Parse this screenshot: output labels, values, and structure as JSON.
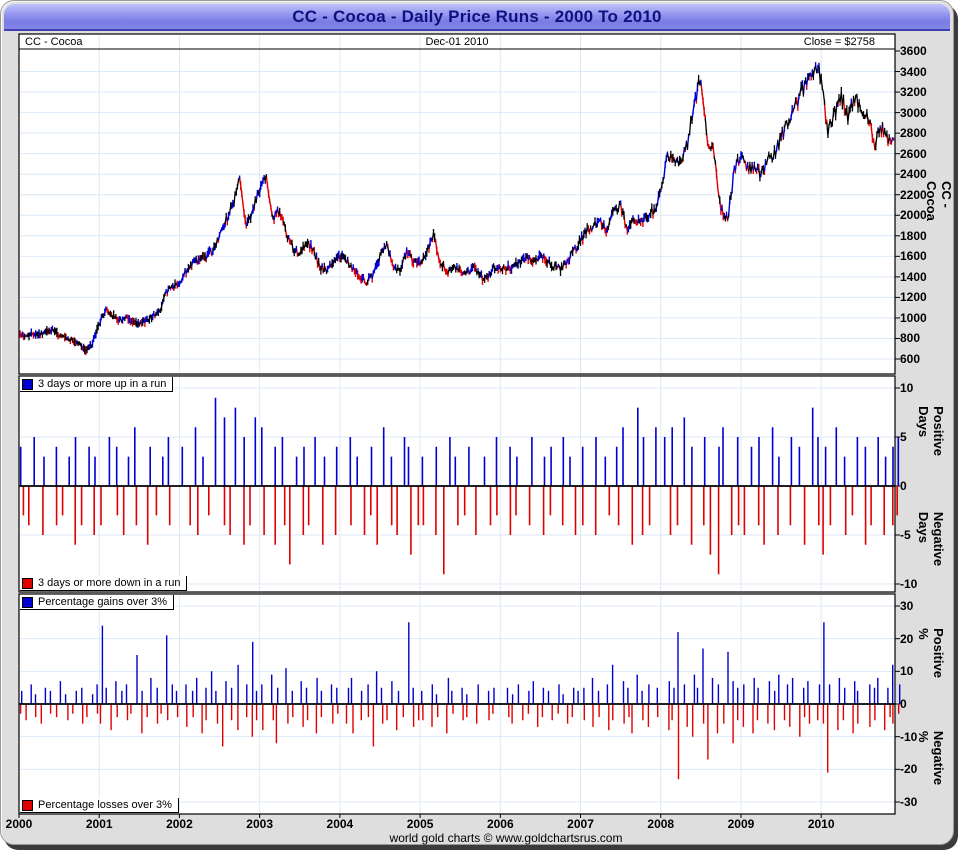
{
  "window_title": "CC - Cocoa - Daily Price Runs - 2000 To 2010",
  "header": {
    "left": "CC - Cocoa",
    "center": "Dec-01 2010",
    "right": "Close = $2758"
  },
  "legends": {
    "days_up": "3 days or more up in a run",
    "days_down": "3 days or more down in a run",
    "pct_up": "Percentage gains over 3%",
    "pct_down": "Percentage losses over 3%"
  },
  "footer_text": "world gold charts © www.goldchartsrus.com",
  "colors": {
    "up_blue": "#0000d2",
    "down_red": "#e00000",
    "line_black": "#000000",
    "grid_blue": "#dce9f6",
    "title_text": "#10107e",
    "titlebar_top": "#c0c2fa",
    "titlebar_bottom": "#8385e8",
    "frame_dark": "#3b3b3b",
    "body_gray": "#dedede"
  },
  "axes": {
    "x_years": [
      "2000",
      "2001",
      "2002",
      "2003",
      "2004",
      "2005",
      "2006",
      "2007",
      "2008",
      "2009",
      "2010"
    ],
    "price_axis": {
      "label": "CC - Cocoa",
      "min": 600,
      "max": 3600,
      "ticks": [
        3600,
        3400,
        3200,
        3000,
        2800,
        2600,
        2400,
        2200,
        2000,
        1800,
        1600,
        1400,
        1200,
        1000,
        800,
        600
      ]
    },
    "days_axis": {
      "pos_label": "Positive Days",
      "neg_label": "Negative Days",
      "min": -10,
      "max": 10,
      "ticks": [
        10,
        5,
        0,
        -5,
        -10
      ]
    },
    "pct_axis": {
      "pos_label": "Positive %",
      "neg_label": "Negative %",
      "min": -30,
      "max": 30,
      "ticks": [
        30,
        20,
        10,
        0,
        -10,
        -20,
        -30
      ]
    }
  },
  "chart_data": [
    {
      "type": "line",
      "title": "CC - Cocoa daily close price",
      "last_date": "Dec-01 2010",
      "close": 2758,
      "ylim": [
        600,
        3600
      ],
      "x_start_year": 2000,
      "points_per_year": 12,
      "values": [
        850,
        820,
        850,
        840,
        860,
        880,
        830,
        800,
        780,
        750,
        680,
        750,
        950,
        1080,
        1020,
        980,
        1000,
        960,
        930,
        980,
        1020,
        1060,
        1250,
        1300,
        1350,
        1450,
        1550,
        1580,
        1600,
        1650,
        1800,
        1950,
        2100,
        2350,
        1900,
        2050,
        2250,
        2400,
        1950,
        2060,
        1800,
        1680,
        1600,
        1750,
        1650,
        1500,
        1450,
        1550,
        1600,
        1550,
        1480,
        1400,
        1350,
        1420,
        1600,
        1700,
        1500,
        1450,
        1650,
        1550,
        1520,
        1650,
        1800,
        1550,
        1450,
        1500,
        1450,
        1440,
        1500,
        1400,
        1380,
        1500,
        1500,
        1480,
        1500,
        1550,
        1600,
        1560,
        1620,
        1560,
        1500,
        1480,
        1550,
        1650,
        1750,
        1850,
        1900,
        1950,
        1850,
        2050,
        2100,
        1850,
        1950,
        1950,
        2000,
        2050,
        2200,
        2600,
        2500,
        2550,
        2700,
        3100,
        3350,
        2750,
        2600,
        2050,
        1950,
        2450,
        2600,
        2450,
        2450,
        2400,
        2550,
        2600,
        2750,
        2900,
        3050,
        3200,
        3300,
        3450,
        3350,
        2800,
        3000,
        3150,
        2950,
        3150,
        3050,
        2950,
        2700,
        2850,
        2750,
        2758
      ]
    },
    {
      "type": "bar",
      "title": "Runs of 3 days or more",
      "ylim": [
        -10,
        10
      ],
      "x_start_year": 2000,
      "points_per_year": 12,
      "series": [
        {
          "name": "3 days or more up in a run",
          "values": [
            4,
            0,
            5,
            3,
            0,
            4,
            0,
            3,
            5,
            0,
            4,
            3,
            0,
            5,
            4,
            0,
            3,
            6,
            0,
            4,
            0,
            3,
            5,
            0,
            4,
            0,
            6,
            3,
            0,
            9,
            7,
            0,
            8,
            5,
            0,
            7,
            6,
            0,
            4,
            5,
            0,
            3,
            4,
            0,
            5,
            3,
            0,
            4,
            0,
            5,
            3,
            0,
            4,
            0,
            6,
            3,
            0,
            5,
            4,
            0,
            3,
            0,
            4,
            0,
            5,
            3,
            0,
            4,
            0,
            3,
            0,
            5,
            0,
            4,
            3,
            0,
            5,
            0,
            3,
            4,
            0,
            5,
            3,
            0,
            4,
            0,
            5,
            3,
            0,
            4,
            6,
            0,
            8,
            5,
            0,
            6,
            5,
            6,
            0,
            7,
            4,
            0,
            5,
            0,
            4,
            6,
            0,
            5,
            0,
            4,
            5,
            0,
            6,
            3,
            0,
            5,
            4,
            0,
            8,
            5,
            4,
            0,
            6,
            3,
            0,
            5,
            4,
            0,
            5,
            3,
            4,
            5
          ]
        },
        {
          "name": "3 days or more down in a run",
          "values": [
            -3,
            -4,
            0,
            -5,
            0,
            -4,
            -3,
            0,
            -6,
            -4,
            0,
            -5,
            -4,
            0,
            -3,
            -5,
            0,
            -4,
            0,
            -6,
            -3,
            0,
            -4,
            0,
            0,
            -4,
            -5,
            0,
            -3,
            0,
            -4,
            -5,
            0,
            -6,
            -4,
            0,
            -5,
            0,
            -6,
            -4,
            -8,
            0,
            -5,
            -4,
            0,
            -6,
            0,
            -5,
            0,
            -4,
            0,
            -5,
            -3,
            -6,
            0,
            -4,
            -5,
            0,
            -7,
            -4,
            -4,
            0,
            -5,
            -9,
            0,
            -4,
            -3,
            0,
            -5,
            0,
            -4,
            -3,
            0,
            -5,
            -3,
            0,
            -4,
            0,
            -5,
            -3,
            0,
            -4,
            0,
            -5,
            -4,
            0,
            -5,
            0,
            -3,
            -4,
            0,
            -6,
            0,
            -5,
            -4,
            0,
            0,
            -5,
            -4,
            0,
            -6,
            0,
            -4,
            -7,
            -9,
            0,
            -5,
            -4,
            -5,
            0,
            -4,
            -6,
            0,
            -5,
            0,
            -4,
            0,
            -6,
            0,
            -4,
            -7,
            -4,
            0,
            -5,
            -3,
            0,
            -6,
            -4,
            0,
            -5,
            -4,
            -3
          ]
        }
      ]
    },
    {
      "type": "bar",
      "title": "Daily percentage moves over 3%",
      "ylim": [
        -30,
        30
      ],
      "x_start_year": 2000,
      "points_per_year": 16,
      "series": [
        {
          "name": "Percentage gains over 3%",
          "values": [
            4,
            0,
            6,
            3,
            0,
            5,
            4,
            0,
            7,
            3,
            0,
            4,
            5,
            0,
            3,
            6,
            24,
            5,
            0,
            7,
            4,
            6,
            0,
            15,
            4,
            0,
            8,
            5,
            0,
            21,
            6,
            4,
            0,
            6,
            4,
            8,
            0,
            5,
            10,
            4,
            0,
            7,
            5,
            12,
            0,
            6,
            19,
            4,
            6,
            0,
            9,
            5,
            0,
            11,
            4,
            0,
            7,
            5,
            0,
            8,
            4,
            0,
            6,
            5,
            0,
            5,
            8,
            0,
            4,
            6,
            0,
            10,
            5,
            0,
            7,
            4,
            0,
            25,
            5,
            0,
            4,
            0,
            6,
            3,
            0,
            8,
            4,
            0,
            5,
            3,
            0,
            6,
            0,
            4,
            5,
            0,
            0,
            5,
            3,
            6,
            0,
            4,
            7,
            0,
            5,
            4,
            0,
            6,
            3,
            0,
            5,
            4,
            5,
            0,
            8,
            4,
            0,
            6,
            12,
            0,
            7,
            5,
            0,
            9,
            4,
            6,
            0,
            5,
            0,
            7,
            5,
            22,
            6,
            0,
            9,
            5,
            17,
            0,
            8,
            6,
            0,
            16,
            7,
            5,
            6,
            0,
            8,
            5,
            0,
            7,
            4,
            9,
            0,
            6,
            8,
            0,
            5,
            7,
            0,
            6,
            25,
            6,
            0,
            8,
            5,
            0,
            7,
            4,
            0,
            6,
            5,
            8,
            0,
            5,
            12,
            6
          ]
        },
        {
          "name": "Percentage losses over 3%",
          "values": [
            -3,
            -5,
            0,
            -4,
            -6,
            0,
            -3,
            -4,
            0,
            -5,
            -3,
            0,
            -6,
            -4,
            0,
            -3,
            -6,
            0,
            -8,
            -4,
            0,
            -5,
            -3,
            0,
            -9,
            -4,
            0,
            -6,
            -3,
            -5,
            0,
            -4,
            0,
            -7,
            -4,
            0,
            -9,
            -5,
            0,
            -6,
            -13,
            0,
            -5,
            -8,
            0,
            -4,
            -10,
            -5,
            -8,
            0,
            -5,
            -12,
            0,
            -6,
            -4,
            0,
            -7,
            -5,
            0,
            -9,
            -4,
            0,
            -6,
            -3,
            0,
            -6,
            -9,
            0,
            -5,
            -4,
            -13,
            0,
            -6,
            -5,
            0,
            -8,
            -4,
            0,
            -7,
            -5,
            -5,
            0,
            -7,
            -4,
            0,
            -9,
            -3,
            0,
            -5,
            -4,
            0,
            -6,
            0,
            -5,
            -3,
            0,
            0,
            -4,
            -6,
            0,
            -5,
            -3,
            0,
            -7,
            -4,
            0,
            -5,
            -3,
            0,
            -6,
            -4,
            0,
            -5,
            0,
            -7,
            -4,
            0,
            -8,
            -5,
            0,
            -6,
            -4,
            -9,
            0,
            -5,
            -7,
            0,
            -4,
            0,
            -8,
            -5,
            -23,
            0,
            -7,
            -10,
            0,
            -6,
            -17,
            0,
            -9,
            -6,
            0,
            -12,
            -5,
            -7,
            0,
            -9,
            -5,
            0,
            -6,
            -8,
            0,
            -5,
            -7,
            0,
            -10,
            -4,
            -6,
            0,
            -5,
            -6,
            -21,
            0,
            -8,
            -5,
            0,
            -9,
            -6,
            0,
            -7,
            -5,
            0,
            -8,
            -4,
            -6,
            -3
          ]
        }
      ]
    }
  ]
}
